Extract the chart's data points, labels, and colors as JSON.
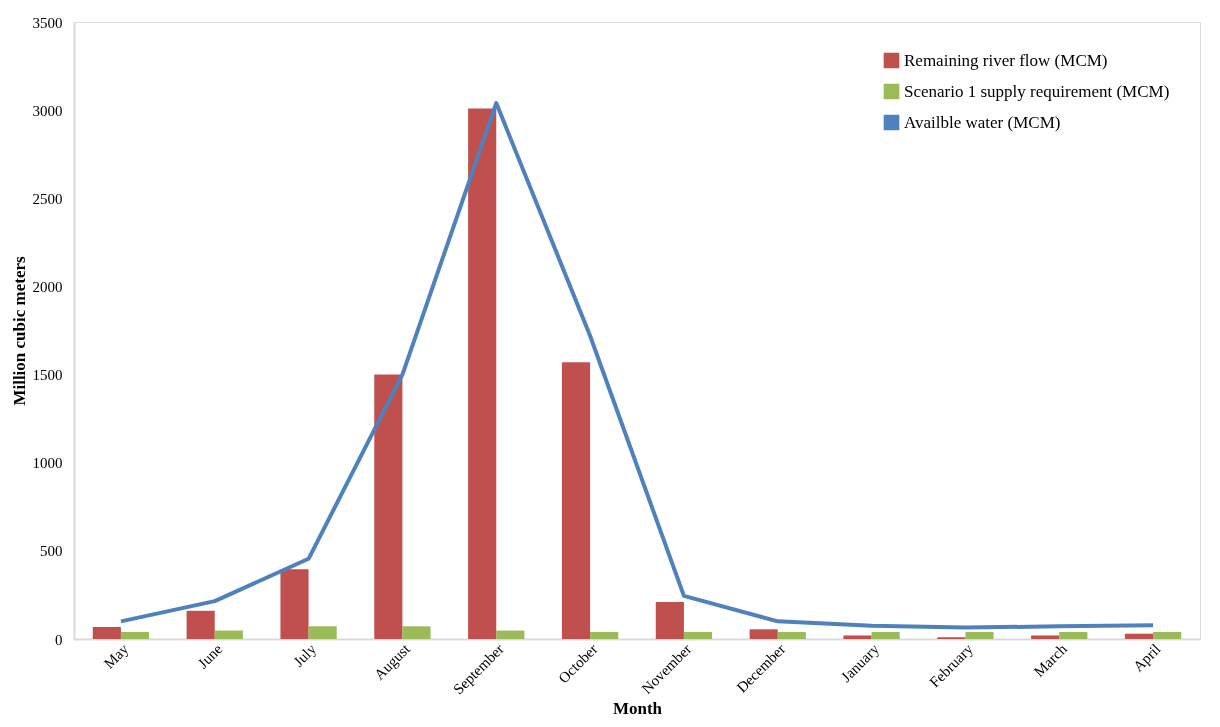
{
  "chart_data": {
    "type": "bar",
    "xlabel": "Month",
    "ylabel": "Million cubic meters",
    "categories": [
      "May",
      "June",
      "July",
      "August",
      "September",
      "October",
      "November",
      "December",
      "January",
      "February",
      "March",
      "April"
    ],
    "series": [
      {
        "name": "Remaining river flow (MCM)",
        "color": "#c0504d",
        "values": [
          68,
          160,
          395,
          1500,
          3010,
          1570,
          210,
          55,
          20,
          10,
          20,
          30
        ]
      },
      {
        "name": "Scenario 1 supply requirement (MCM)",
        "color": "#9bbb59",
        "values": [
          40,
          48,
          72,
          72,
          48,
          40,
          40,
          40,
          40,
          40,
          40,
          40
        ]
      },
      {
        "name": "Availble water (MCM)",
        "color": "#4f81bd",
        "type": "line",
        "values": [
          100,
          215,
          455,
          1500,
          3040,
          1720,
          245,
          100,
          75,
          65,
          72,
          78
        ]
      }
    ],
    "ylim": [
      0,
      3500
    ],
    "yticks": [
      0,
      500,
      1000,
      1500,
      2000,
      2500,
      3000,
      3500
    ],
    "grid": false,
    "legend": "top right",
    "marker": "none",
    "line_style": "solid"
  }
}
